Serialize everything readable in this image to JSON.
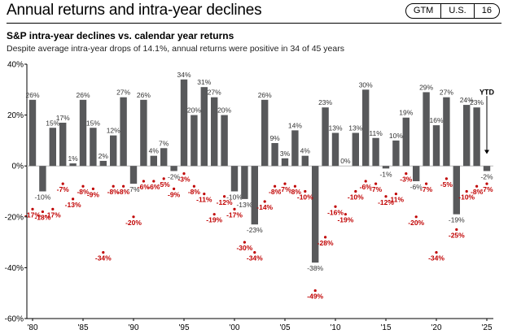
{
  "header": {
    "page_title": "Annual returns and intra-year declines",
    "badges": [
      "GTM",
      "U.S.",
      "16"
    ]
  },
  "chart_data": {
    "type": "bar",
    "title": "S&P intra-year declines vs. calendar year returns",
    "subtitle": "Despite average intra-year drops of 14.1%, annual returns were positive in 34 of 45 years",
    "ylim": [
      -60,
      40
    ],
    "y_ticks": [
      "40%",
      "20%",
      "0%",
      "-20%",
      "-40%",
      "-60%"
    ],
    "y_tick_values": [
      40,
      20,
      0,
      -20,
      -40,
      -60
    ],
    "x_tick_labels": [
      "'80",
      "'85",
      "'90",
      "'95",
      "'00",
      "'05",
      "'10",
      "'15",
      "'20",
      "'25"
    ],
    "x_tick_years": [
      1980,
      1985,
      1990,
      1995,
      2000,
      2005,
      2010,
      2015,
      2020,
      2025
    ],
    "years": [
      1980,
      1981,
      1982,
      1983,
      1984,
      1985,
      1986,
      1987,
      1988,
      1989,
      1990,
      1991,
      1992,
      1993,
      1994,
      1995,
      1996,
      1997,
      1998,
      1999,
      2000,
      2001,
      2002,
      2003,
      2004,
      2005,
      2006,
      2007,
      2008,
      2009,
      2010,
      2011,
      2012,
      2013,
      2014,
      2015,
      2016,
      2017,
      2018,
      2019,
      2020,
      2021,
      2022,
      2023,
      2024,
      2025
    ],
    "annual_returns": [
      26,
      -10,
      15,
      17,
      1,
      26,
      15,
      2,
      12,
      27,
      -7,
      26,
      4,
      7,
      -2,
      34,
      20,
      31,
      27,
      20,
      -10,
      -13,
      -23,
      26,
      9,
      3,
      14,
      4,
      -38,
      23,
      13,
      0,
      13,
      30,
      11,
      -1,
      10,
      19,
      -6,
      29,
      16,
      27,
      -19,
      24,
      23,
      -2
    ],
    "annual_return_labels": [
      "26%",
      "-10%",
      "15%",
      "17%",
      "1%",
      "26%",
      "15%",
      "2%",
      "12%",
      "27%",
      "-7%",
      "26%",
      "4%",
      "7%",
      "-2%",
      "34%",
      "20%",
      "31%",
      "27%",
      "20%",
      "-10%",
      "-13%",
      "-23%",
      "26%",
      "9%",
      "3%",
      "14%",
      "4%",
      "-38%",
      "23%",
      "13%",
      "0%",
      "13%",
      "30%",
      "11%",
      "-1%",
      "10%",
      "19%",
      "-6%",
      "29%",
      "16%",
      "27%",
      "-19%",
      "24%",
      "23%",
      "-2%"
    ],
    "intra_year_declines": [
      -17,
      -18,
      -17,
      -7,
      -13,
      -8,
      -9,
      -34,
      -8,
      -8,
      -20,
      -6,
      -6,
      -5,
      -9,
      -3,
      -8,
      -11,
      -19,
      -12,
      -17,
      -30,
      -34,
      -14,
      -8,
      -7,
      -8,
      -10,
      -49,
      -28,
      -16,
      -19,
      -10,
      -6,
      -7,
      -12,
      -11,
      -3,
      -20,
      -7,
      -34,
      -5,
      -25,
      -10,
      -8,
      -7
    ],
    "intra_year_decline_labels": [
      "-17%",
      "-18%",
      "-17%",
      "-7%",
      "-13%",
      "-8%",
      "-9%",
      "-34%",
      "-8%",
      "-8%",
      "-20%",
      "-6%",
      "-6%",
      "-5%",
      "-9%",
      "-3%",
      "-8%",
      "-11%",
      "-19%",
      "-12%",
      "-17%",
      "-30%",
      "-34%",
      "-14%",
      "-8%",
      "-7%",
      "-8%",
      "-10%",
      "-49%",
      "-28%",
      "-16%",
      "-19%",
      "-10%",
      "-6%",
      "-7%",
      "-12%",
      "-11%",
      "-3%",
      "-20%",
      "-7%",
      "-34%",
      "-5%",
      "-25%",
      "-10%",
      "-8%",
      "-7%"
    ],
    "ytd_label": "YTD",
    "grid": false,
    "colors": {
      "bar": "#58595b",
      "decline": "#c00000",
      "axis": "#000000"
    }
  }
}
